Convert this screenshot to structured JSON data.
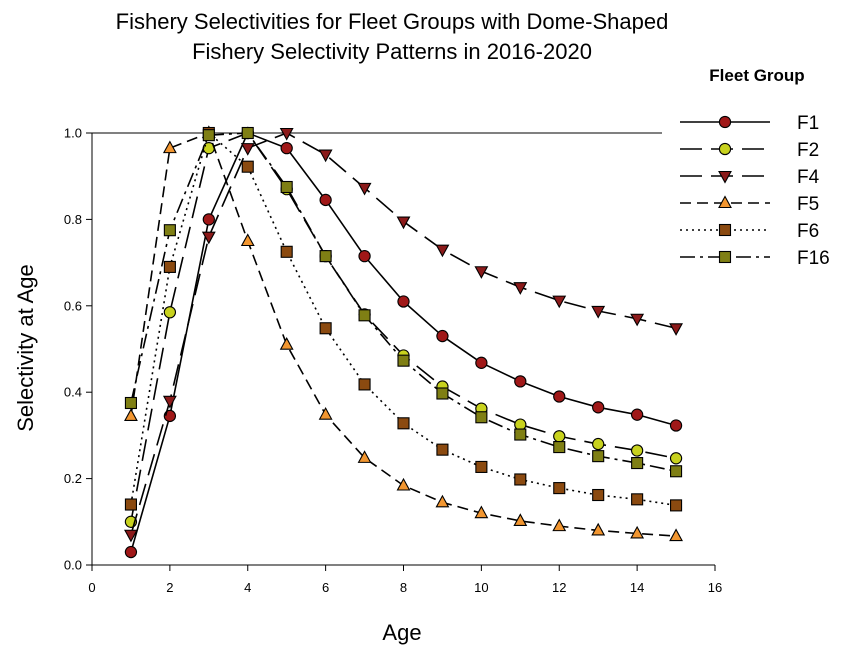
{
  "chart_data": {
    "type": "line",
    "title_lines": [
      "Fishery Selectivities for Fleet Groups with Dome-Shaped",
      "Fishery Selectivity Patterns in 2016-2020"
    ],
    "xlabel": "Age",
    "ylabel": "Selectivity at Age",
    "xlim": [
      0,
      16
    ],
    "ylim": [
      0,
      1.0
    ],
    "xticks": [
      0,
      2,
      4,
      6,
      8,
      10,
      12,
      14,
      16
    ],
    "yticks": [
      0.0,
      0.2,
      0.4,
      0.6,
      0.8,
      1.0
    ],
    "ytick_labels": [
      "0.0",
      "0.2",
      "0.4",
      "0.6",
      "0.8",
      "1.0"
    ],
    "grid": false,
    "legend_title": "Fleet Group",
    "legend_placement": "top-right",
    "x": [
      1,
      2,
      3,
      4,
      5,
      6,
      7,
      8,
      9,
      10,
      11,
      12,
      13,
      14,
      15
    ],
    "series": [
      {
        "name": "F1",
        "marker": "circle",
        "dash": "solid",
        "color": "#a01818",
        "values": [
          0.03,
          0.345,
          0.8,
          1.0,
          0.965,
          0.845,
          0.715,
          0.61,
          0.53,
          0.468,
          0.425,
          0.39,
          0.365,
          0.348,
          0.323
        ]
      },
      {
        "name": "F2",
        "marker": "circle",
        "dash": "longdash",
        "color": "#c8d21e",
        "values": [
          0.1,
          0.585,
          0.965,
          1.0,
          0.87,
          0.715,
          0.58,
          0.485,
          0.413,
          0.362,
          0.325,
          0.298,
          0.28,
          0.265,
          0.247
        ]
      },
      {
        "name": "F4",
        "marker": "triangle-down",
        "dash": "longdash",
        "color": "#8b1a1a",
        "values": [
          0.07,
          0.38,
          0.76,
          0.965,
          1.0,
          0.95,
          0.873,
          0.795,
          0.73,
          0.68,
          0.643,
          0.612,
          0.588,
          0.57,
          0.548
        ]
      },
      {
        "name": "F5",
        "marker": "triangle-up",
        "dash": "dash",
        "color": "#f29630",
        "values": [
          0.345,
          0.965,
          1.0,
          0.75,
          0.51,
          0.348,
          0.248,
          0.184,
          0.145,
          0.12,
          0.102,
          0.09,
          0.08,
          0.073,
          0.067
        ]
      },
      {
        "name": "F6",
        "marker": "square",
        "dash": "dot",
        "color": "#8b4a10",
        "values": [
          0.14,
          0.69,
          1.0,
          0.922,
          0.725,
          0.548,
          0.418,
          0.328,
          0.267,
          0.227,
          0.198,
          0.178,
          0.162,
          0.152,
          0.138
        ]
      },
      {
        "name": "F16",
        "marker": "square",
        "dash": "dashdot",
        "color": "#7f7f14",
        "values": [
          0.375,
          0.775,
          0.995,
          1.0,
          0.875,
          0.715,
          0.578,
          0.473,
          0.397,
          0.342,
          0.302,
          0.273,
          0.252,
          0.236,
          0.217
        ]
      }
    ]
  }
}
